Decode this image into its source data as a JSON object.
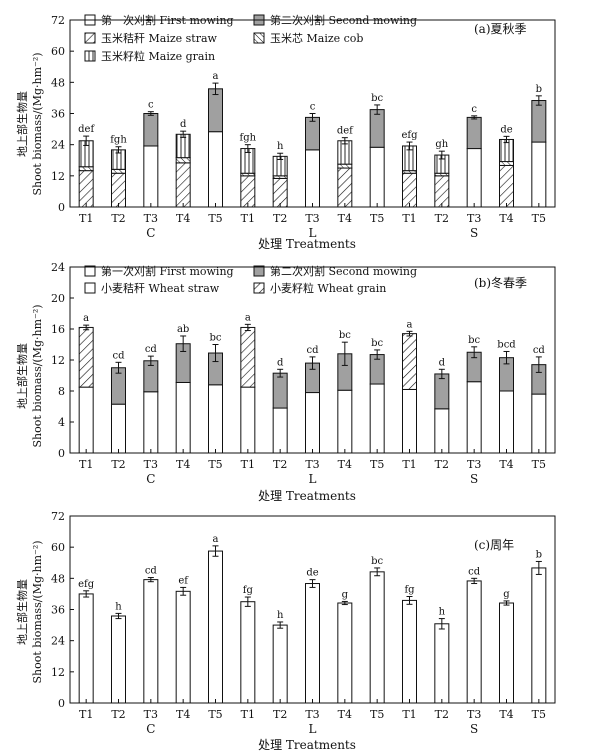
{
  "chart_data": [
    {
      "type": "bar",
      "stacked": true,
      "panel_title": "(a)夏秋季",
      "ylabel": "地上部生物量\nShoot biomass/(Mg·hm⁻²)",
      "xlabel": "处理 Treatments",
      "ylim": [
        0,
        72
      ],
      "yticks": [
        0,
        12,
        24,
        36,
        48,
        60,
        72
      ],
      "categories": [
        "T1",
        "T2",
        "T3",
        "T4",
        "T5",
        "T1",
        "T2",
        "T3",
        "T4",
        "T5",
        "T1",
        "T2",
        "T3",
        "T4",
        "T5"
      ],
      "groups": [
        "C",
        "L",
        "S"
      ],
      "legend": [
        {
          "name": "第一次刈割 First mowing",
          "pattern": "white"
        },
        {
          "name": "第二次刈割 Second mowing",
          "pattern": "gray"
        },
        {
          "name": "玉米秸秆 Maize straw",
          "pattern": "hatch"
        },
        {
          "name": "玉米芯 Maize cob",
          "pattern": "hatch2"
        },
        {
          "name": "玉米籽粒 Maize grain",
          "pattern": "vlines"
        }
      ],
      "series": [
        {
          "name": "玉米秸秆 Maize straw",
          "pattern": "hatch",
          "values": [
            14,
            13,
            0,
            17,
            0,
            12,
            11,
            0,
            15,
            0,
            13,
            12,
            0,
            16,
            0
          ]
        },
        {
          "name": "玉米芯 Maize cob",
          "pattern": "hatch2",
          "values": [
            1.5,
            1.5,
            0,
            2,
            0,
            1,
            1,
            0,
            1.5,
            0,
            1,
            1,
            0,
            1.5,
            0
          ]
        },
        {
          "name": "玉米籽粒 Maize grain",
          "pattern": "vlines",
          "values": [
            10,
            7.5,
            0,
            9,
            0,
            9.5,
            7.5,
            0,
            9,
            0,
            9.5,
            7,
            0,
            8.5,
            0
          ]
        },
        {
          "name": "第一次刈割 First mowing",
          "pattern": "white",
          "values": [
            0,
            0,
            23.5,
            0,
            29,
            0,
            0,
            22,
            0,
            23,
            0,
            0,
            22.5,
            0,
            25
          ]
        },
        {
          "name": "第二次刈割 Second mowing",
          "pattern": "gray",
          "values": [
            0,
            0,
            12.5,
            0,
            16.5,
            0,
            0,
            12.5,
            0,
            14.5,
            0,
            0,
            12,
            0,
            16
          ]
        }
      ],
      "errors": [
        1.8,
        1.2,
        0.7,
        1.2,
        2.2,
        1.5,
        1.2,
        1.5,
        1.2,
        1.8,
        1.5,
        1.5,
        0.6,
        1.2,
        1.8
      ],
      "letters": [
        "def",
        "fgh",
        "c",
        "d",
        "a",
        "fgh",
        "h",
        "c",
        "def",
        "bc",
        "efg",
        "gh",
        "c",
        "de",
        "b"
      ]
    },
    {
      "type": "bar",
      "stacked": true,
      "panel_title": "(b)冬春季",
      "ylabel": "地上部生物量\nShoot biomass/(Mg·hm⁻²)",
      "xlabel": "处理 Treatments",
      "ylim": [
        0,
        24
      ],
      "yticks": [
        0,
        4,
        8,
        12,
        16,
        20,
        24
      ],
      "categories": [
        "T1",
        "T2",
        "T3",
        "T4",
        "T5",
        "T1",
        "T2",
        "T3",
        "T4",
        "T5",
        "T1",
        "T2",
        "T3",
        "T4",
        "T5"
      ],
      "groups": [
        "C",
        "L",
        "S"
      ],
      "legend": [
        {
          "name": "第一次刈割 First mowing",
          "pattern": "white"
        },
        {
          "name": "第二次刈割 Second mowing",
          "pattern": "gray"
        },
        {
          "name": "小麦秸秆 Wheat straw",
          "pattern": "white"
        },
        {
          "name": "小麦籽粒 Wheat grain",
          "pattern": "hatch"
        }
      ],
      "series": [
        {
          "name": "小麦秸秆 Wheat straw",
          "pattern": "white",
          "values": [
            8.5,
            0,
            0,
            0,
            0,
            8.5,
            0,
            0,
            0,
            0,
            8.2,
            0,
            0,
            0,
            0
          ]
        },
        {
          "name": "小麦籽粒 Wheat grain",
          "pattern": "hatch",
          "values": [
            7.7,
            0,
            0,
            0,
            0,
            7.7,
            0,
            0,
            0,
            0,
            7.2,
            0,
            0,
            0,
            0
          ]
        },
        {
          "name": "第一次刈割 First mowing",
          "pattern": "white",
          "values": [
            0,
            6.3,
            7.9,
            9.1,
            8.8,
            0,
            5.8,
            7.8,
            8.1,
            8.9,
            0,
            5.7,
            9.2,
            8.0,
            7.6
          ]
        },
        {
          "name": "第二次刈割 Second mowing",
          "pattern": "gray",
          "values": [
            0,
            4.7,
            4.0,
            5.0,
            4.1,
            0,
            4.5,
            3.8,
            4.7,
            3.8,
            0,
            4.5,
            3.8,
            4.3,
            3.8
          ]
        }
      ],
      "errors": [
        0.3,
        0.7,
        0.6,
        1.0,
        1.1,
        0.4,
        0.5,
        0.8,
        1.5,
        0.6,
        0.3,
        0.6,
        0.7,
        0.8,
        1.0
      ],
      "letters": [
        "a",
        "cd",
        "cd",
        "ab",
        "bc",
        "a",
        "d",
        "cd",
        "bc",
        "bc",
        "a",
        "d",
        "bc",
        "bcd",
        "cd"
      ]
    },
    {
      "type": "bar",
      "stacked": false,
      "panel_title": "(c)周年",
      "ylabel": "地上部生物量\nShoot biomass/(Mg·hm⁻²)",
      "xlabel": "处理 Treatments",
      "ylim": [
        0,
        72
      ],
      "yticks": [
        0,
        12,
        24,
        36,
        48,
        60,
        72
      ],
      "categories": [
        "T1",
        "T2",
        "T3",
        "T4",
        "T5",
        "T1",
        "T2",
        "T3",
        "T4",
        "T5",
        "T1",
        "T2",
        "T3",
        "T4",
        "T5"
      ],
      "groups": [
        "C",
        "L",
        "S"
      ],
      "series": [
        {
          "name": "",
          "pattern": "white",
          "values": [
            42,
            33.5,
            47.5,
            43,
            58.5,
            39,
            30,
            46,
            38.5,
            50.5,
            39.5,
            30.5,
            47,
            38.5,
            52
          ]
        }
      ],
      "errors": [
        1.2,
        1.0,
        0.8,
        1.5,
        2.0,
        1.8,
        1.2,
        1.5,
        0.6,
        1.5,
        1.5,
        2.0,
        1.0,
        0.8,
        2.5
      ],
      "letters": [
        "efg",
        "h",
        "cd",
        "ef",
        "a",
        "fg",
        "h",
        "de",
        "g",
        "bc",
        "fg",
        "h",
        "cd",
        "g",
        "b"
      ]
    }
  ]
}
